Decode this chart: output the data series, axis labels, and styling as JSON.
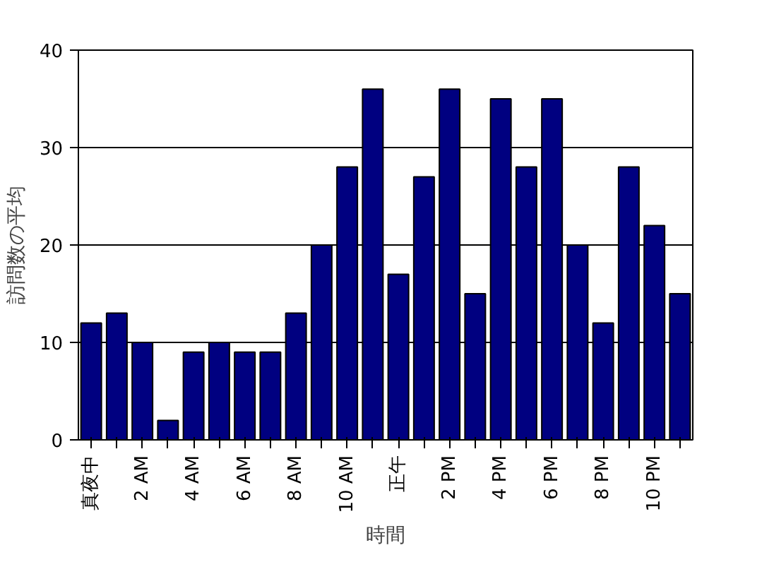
{
  "chart_data": {
    "type": "bar",
    "xlabel": "時間",
    "ylabel": "訪問数の平均",
    "categories": [
      "真夜中",
      null,
      "2 AM",
      null,
      "4 AM",
      null,
      "6 AM",
      null,
      "8 AM",
      null,
      "10 AM",
      null,
      "正午",
      null,
      "2 PM",
      null,
      "4 PM",
      null,
      "6 PM",
      null,
      "8 PM",
      null,
      "10 PM",
      null
    ],
    "values": [
      12,
      13,
      10,
      2,
      9,
      10,
      9,
      9,
      13,
      20,
      28,
      36,
      17,
      27,
      36,
      15,
      35,
      28,
      35,
      20,
      12,
      28,
      22,
      15
    ],
    "color": "#000080",
    "ylim": [
      0,
      40
    ],
    "yticks": [
      0,
      10,
      20,
      30,
      40
    ],
    "grid": "y"
  }
}
